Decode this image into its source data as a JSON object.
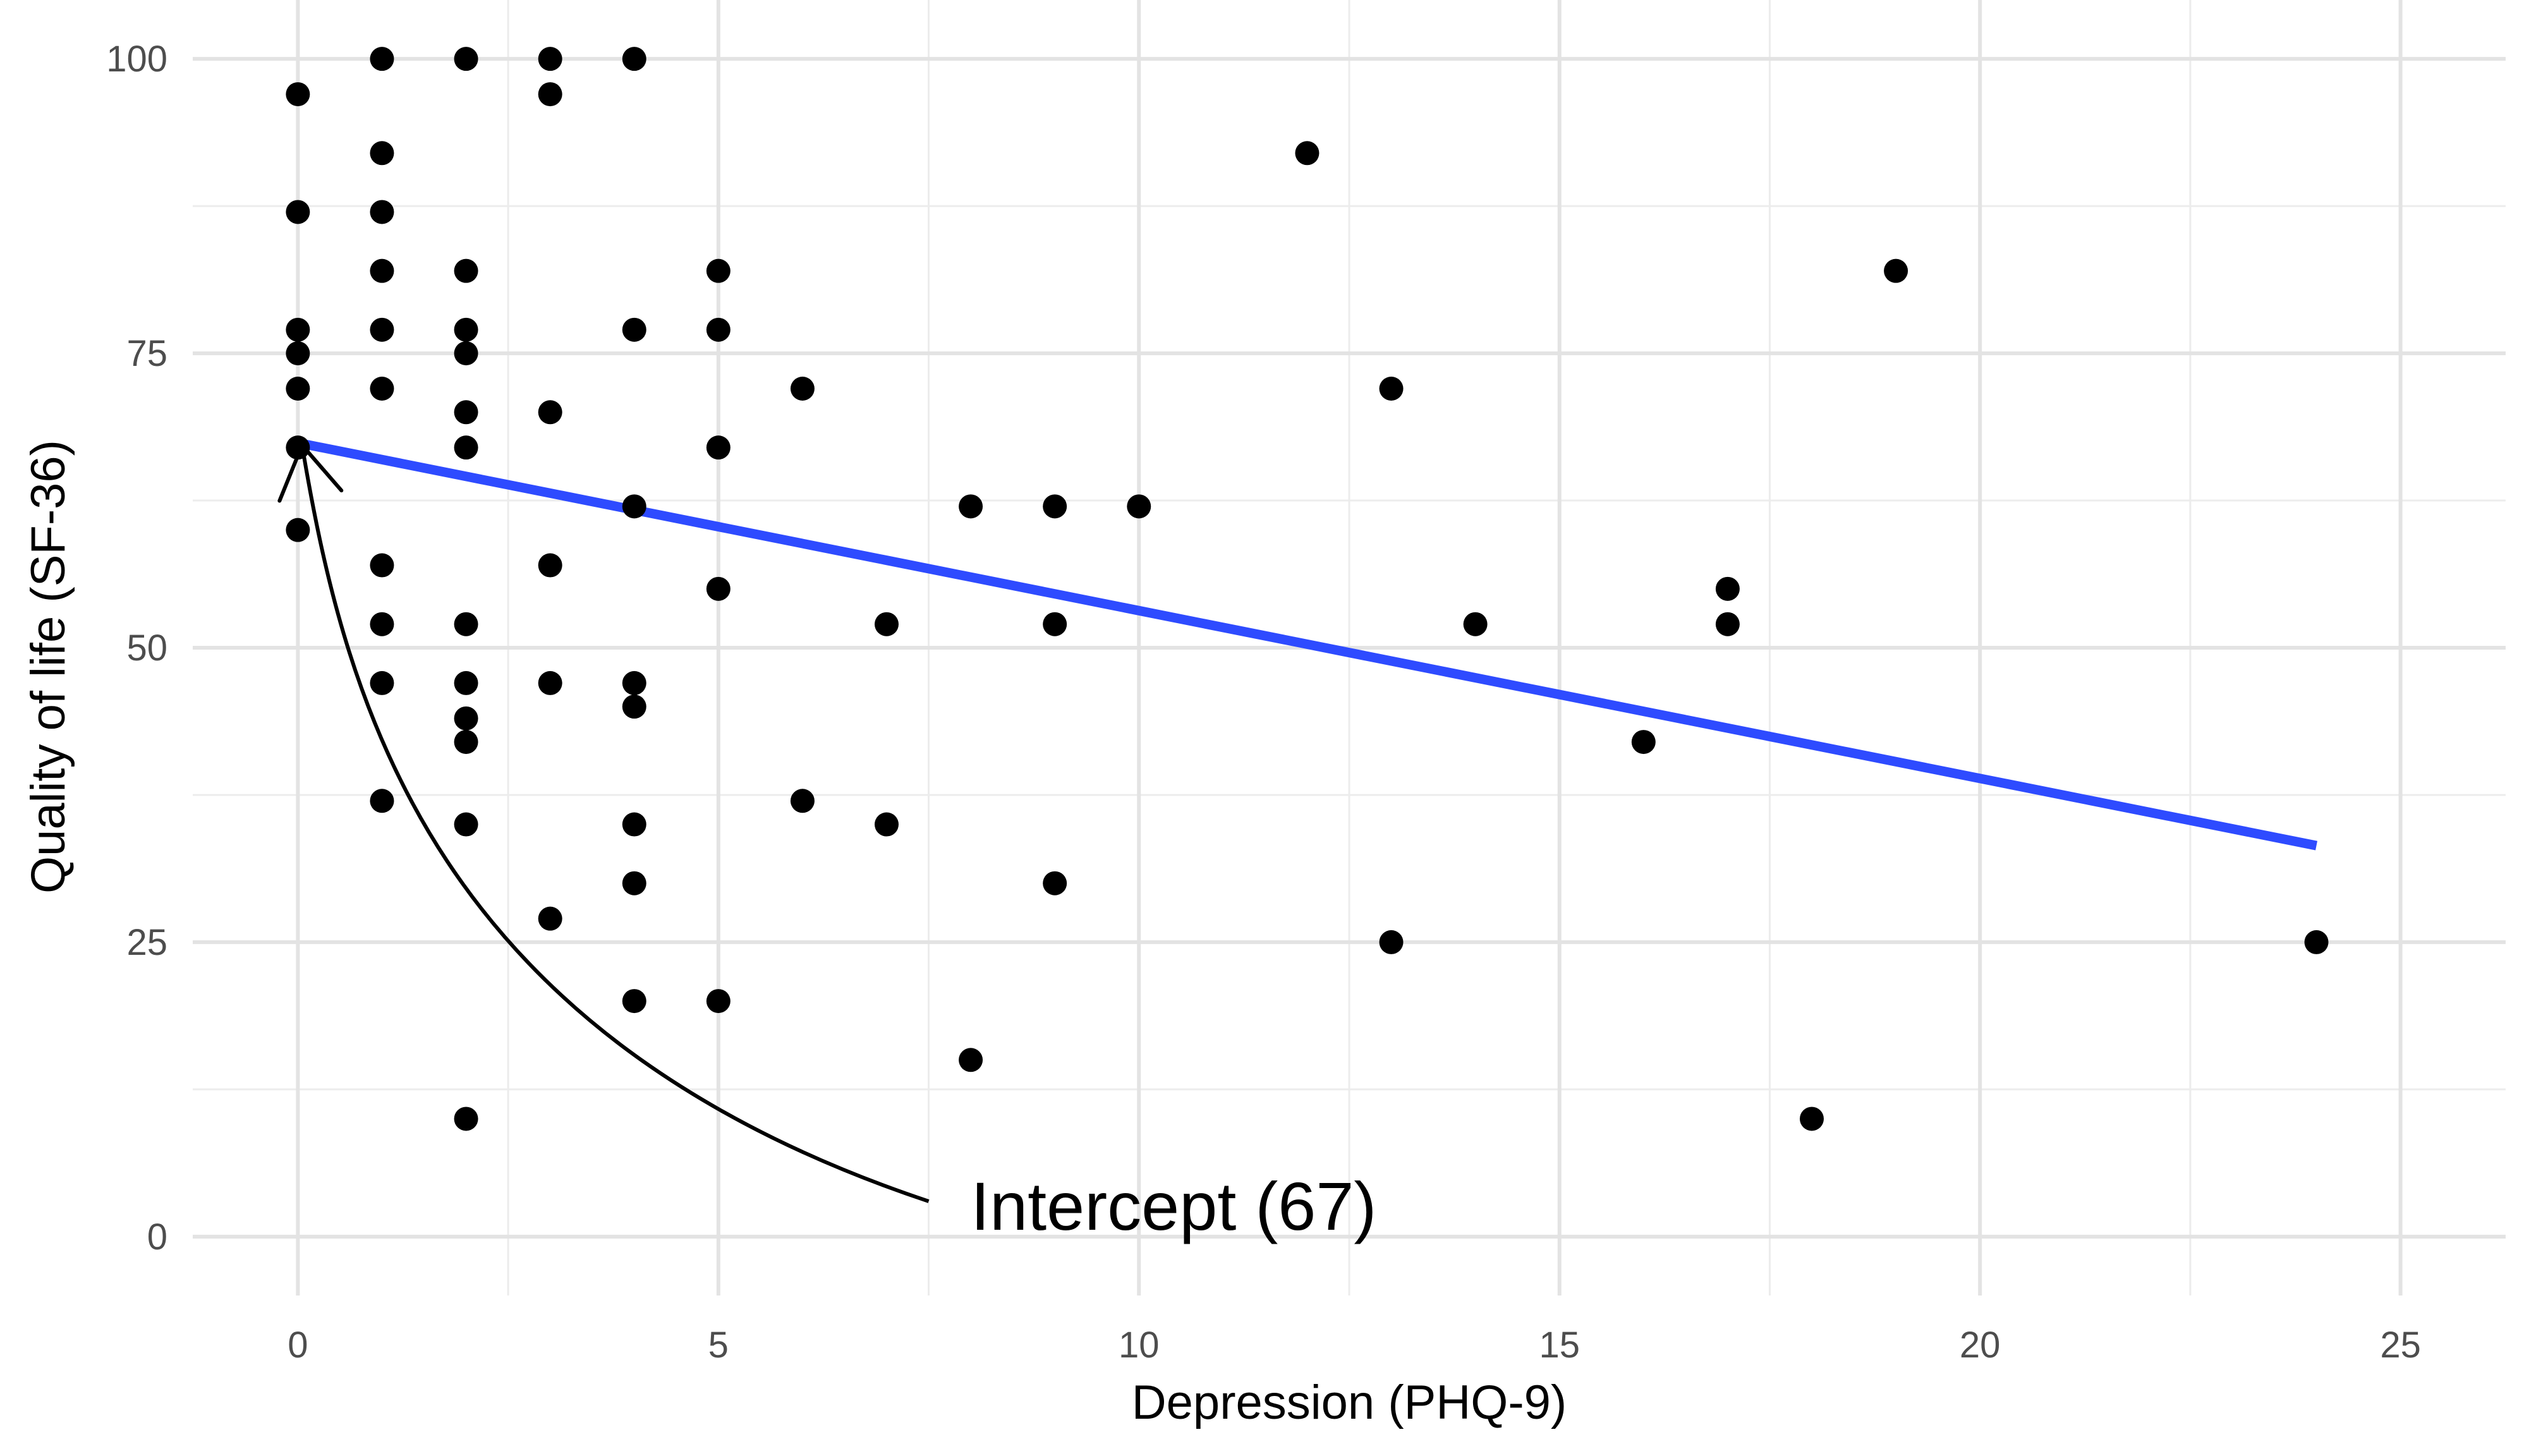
{
  "chart_data": {
    "type": "scatter",
    "title": "",
    "xlabel": "Depression (PHQ-9)",
    "ylabel": "Quality of life (SF-36)",
    "xlim": [
      -1.25,
      26.25
    ],
    "ylim": [
      -5,
      105
    ],
    "xticks": [
      0,
      5,
      10,
      15,
      20,
      25
    ],
    "yticks": [
      0,
      25,
      50,
      75,
      100
    ],
    "grid": true,
    "legend": "none",
    "point_color": "#000000",
    "points": [
      [
        0,
        97
      ],
      [
        0,
        87
      ],
      [
        0,
        77
      ],
      [
        0,
        75
      ],
      [
        0,
        72
      ],
      [
        0,
        67
      ],
      [
        0,
        60
      ],
      [
        1,
        100
      ],
      [
        1,
        92
      ],
      [
        1,
        87
      ],
      [
        1,
        82
      ],
      [
        1,
        77
      ],
      [
        1,
        72
      ],
      [
        1,
        57
      ],
      [
        1,
        52
      ],
      [
        1,
        47
      ],
      [
        1,
        37
      ],
      [
        2,
        100
      ],
      [
        2,
        82
      ],
      [
        2,
        77
      ],
      [
        2,
        75
      ],
      [
        2,
        70
      ],
      [
        2,
        67
      ],
      [
        2,
        52
      ],
      [
        2,
        47
      ],
      [
        2,
        44
      ],
      [
        2,
        42
      ],
      [
        2,
        35
      ],
      [
        2,
        10
      ],
      [
        3,
        100
      ],
      [
        3,
        97
      ],
      [
        3,
        70
      ],
      [
        3,
        57
      ],
      [
        3,
        47
      ],
      [
        3,
        27
      ],
      [
        4,
        100
      ],
      [
        4,
        77
      ],
      [
        4,
        62
      ],
      [
        4,
        47
      ],
      [
        4,
        45
      ],
      [
        4,
        35
      ],
      [
        4,
        30
      ],
      [
        4,
        20
      ],
      [
        5,
        82
      ],
      [
        5,
        77
      ],
      [
        5,
        67
      ],
      [
        5,
        55
      ],
      [
        5,
        20
      ],
      [
        6,
        72
      ],
      [
        6,
        37
      ],
      [
        7,
        52
      ],
      [
        7,
        35
      ],
      [
        8,
        62
      ],
      [
        8,
        15
      ],
      [
        9,
        62
      ],
      [
        9,
        52
      ],
      [
        9,
        30
      ],
      [
        10,
        62
      ],
      [
        12,
        92
      ],
      [
        13,
        72
      ],
      [
        13,
        25
      ],
      [
        14,
        52
      ],
      [
        16,
        42
      ],
      [
        17,
        55
      ],
      [
        17,
        52
      ],
      [
        18,
        10
      ],
      [
        19,
        82
      ],
      [
        24,
        25
      ]
    ],
    "fit_line": {
      "color": "#2e4bff",
      "x": [
        0,
        24
      ],
      "y": [
        67.4,
        33.2
      ]
    },
    "annotation": {
      "text": "Intercept (67)",
      "x": 8,
      "y": 2.5,
      "arrow_from": [
        7.5,
        3
      ],
      "arrow_to": [
        0.05,
        67.2
      ]
    }
  }
}
